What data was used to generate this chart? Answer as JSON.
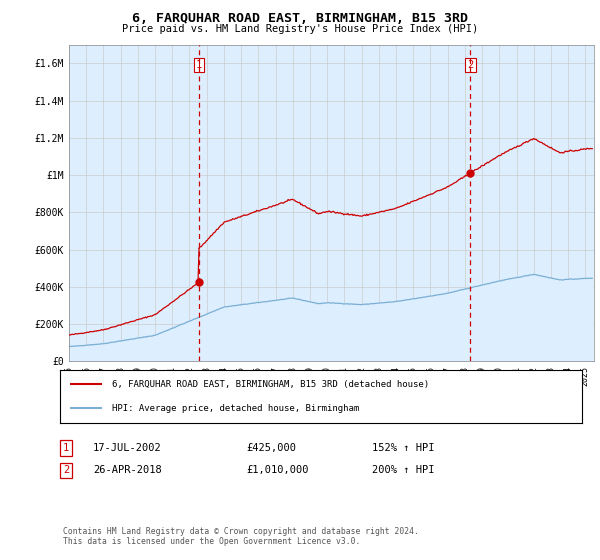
{
  "title": "6, FARQUHAR ROAD EAST, BIRMINGHAM, B15 3RD",
  "subtitle": "Price paid vs. HM Land Registry's House Price Index (HPI)",
  "ylim": [
    0,
    1700000
  ],
  "yticks": [
    0,
    200000,
    400000,
    600000,
    800000,
    1000000,
    1200000,
    1400000,
    1600000
  ],
  "ytick_labels": [
    "£0",
    "£200K",
    "£400K",
    "£600K",
    "£800K",
    "£1M",
    "£1.2M",
    "£1.4M",
    "£1.6M"
  ],
  "xlim_start": 1995.0,
  "xlim_end": 2025.5,
  "sale1_date": 2002.54,
  "sale1_price": 425000,
  "sale1_label": "1",
  "sale2_date": 2018.32,
  "sale2_price": 1010000,
  "sale2_label": "2",
  "house_color": "#cc0000",
  "hpi_color": "#7aafd4",
  "hpi_fill_color": "#ddeeff",
  "dashed_color": "#cc0000",
  "legend_house": "6, FARQUHAR ROAD EAST, BIRMINGHAM, B15 3RD (detached house)",
  "legend_hpi": "HPI: Average price, detached house, Birmingham",
  "table_row1": [
    "1",
    "17-JUL-2002",
    "£425,000",
    "152% ↑ HPI"
  ],
  "table_row2": [
    "2",
    "26-APR-2018",
    "£1,010,000",
    "200% ↑ HPI"
  ],
  "footer": "Contains HM Land Registry data © Crown copyright and database right 2024.\nThis data is licensed under the Open Government Licence v3.0.",
  "background_color": "#ffffff",
  "grid_color": "#cccccc"
}
